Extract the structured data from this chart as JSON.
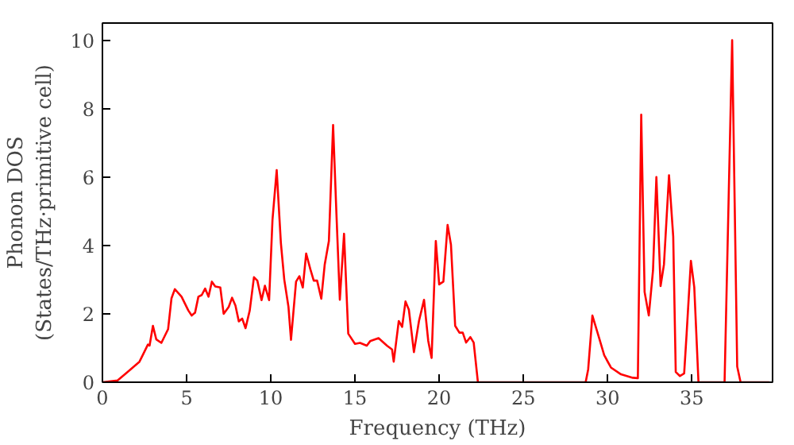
{
  "chart_data": {
    "type": "line",
    "xlabel": "Frequency (THz)",
    "ylabel": "Phonon DOS\n(States/THz·primitive cell)",
    "xlim": [
      0,
      39.8
    ],
    "ylim": [
      0,
      10.5
    ],
    "xticks": [
      0,
      5,
      10,
      15,
      20,
      25,
      30,
      35
    ],
    "yticks": [
      0,
      2,
      4,
      6,
      8,
      10
    ],
    "grid": false,
    "series": [
      {
        "color": "#ff0000",
        "x": [
          0,
          0.9,
          1.5,
          2.2,
          2.4,
          2.7,
          2.8,
          3.0,
          3.2,
          3.5,
          3.9,
          4.1,
          4.3,
          4.7,
          5.1,
          5.3,
          5.5,
          5.7,
          5.9,
          6.1,
          6.3,
          6.5,
          6.7,
          7.0,
          7.2,
          7.5,
          7.7,
          7.9,
          8.1,
          8.3,
          8.5,
          8.75,
          9.0,
          9.2,
          9.45,
          9.65,
          9.9,
          10.1,
          10.35,
          10.6,
          10.8,
          11.05,
          11.2,
          11.5,
          11.7,
          11.9,
          12.1,
          12.35,
          12.55,
          12.75,
          13.0,
          13.2,
          13.45,
          13.7,
          13.9,
          14.1,
          14.35,
          14.6,
          15.0,
          15.3,
          15.7,
          15.9,
          16.4,
          16.9,
          17.2,
          17.3,
          17.6,
          17.8,
          18.0,
          18.2,
          18.5,
          18.8,
          19.1,
          19.35,
          19.55,
          19.8,
          20.0,
          20.25,
          20.5,
          20.7,
          20.95,
          21.2,
          21.4,
          21.6,
          21.85,
          22.05,
          22.3,
          28.7,
          28.85,
          29.1,
          29.5,
          29.8,
          30.2,
          30.8,
          31.5,
          31.8,
          32.0,
          32.2,
          32.45,
          32.7,
          32.9,
          33.15,
          33.35,
          33.65,
          33.9,
          34.05,
          34.3,
          34.55,
          34.7,
          34.95,
          35.15,
          35.4,
          36.95,
          37.4,
          37.7,
          37.9,
          39.6
        ],
        "values": [
          0,
          0.05,
          0.3,
          0.6,
          0.8,
          1.1,
          1.07,
          1.65,
          1.25,
          1.15,
          1.55,
          2.45,
          2.72,
          2.5,
          2.1,
          1.95,
          2.03,
          2.5,
          2.55,
          2.74,
          2.5,
          2.94,
          2.8,
          2.77,
          2.0,
          2.2,
          2.47,
          2.24,
          1.78,
          1.86,
          1.58,
          2.1,
          3.07,
          2.97,
          2.4,
          2.82,
          2.4,
          4.75,
          6.2,
          4.06,
          3.0,
          2.2,
          1.24,
          2.94,
          3.1,
          2.77,
          3.76,
          3.3,
          2.97,
          2.97,
          2.44,
          3.43,
          4.13,
          7.52,
          4.9,
          2.41,
          4.34,
          1.42,
          1.12,
          1.15,
          1.07,
          1.2,
          1.29,
          1.07,
          0.96,
          0.6,
          1.79,
          1.62,
          2.36,
          2.12,
          0.88,
          1.79,
          2.41,
          1.21,
          0.71,
          4.13,
          2.86,
          2.94,
          4.6,
          4.02,
          1.65,
          1.45,
          1.45,
          1.16,
          1.32,
          1.16,
          0,
          0,
          0.38,
          1.95,
          1.29,
          0.79,
          0.43,
          0.23,
          0.13,
          0.12,
          7.82,
          2.64,
          1.95,
          3.27,
          6.0,
          2.81,
          3.44,
          6.05,
          4.26,
          0.3,
          0.18,
          0.26,
          1.45,
          3.55,
          2.78,
          0,
          0,
          10.0,
          0.46,
          0,
          0
        ]
      }
    ]
  }
}
